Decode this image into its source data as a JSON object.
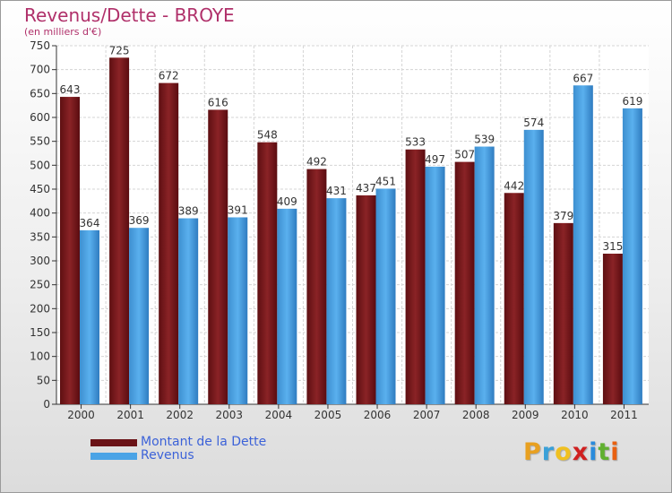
{
  "chart_data": {
    "type": "bar",
    "title": "Revenus/Dette - BROYE",
    "subtitle": "(en milliers d'€)",
    "categories": [
      "2000",
      "2001",
      "2002",
      "2003",
      "2004",
      "2005",
      "2006",
      "2007",
      "2008",
      "2009",
      "2010",
      "2011"
    ],
    "series": [
      {
        "name": "Montant de la Dette",
        "color": "#7a1a1c",
        "values": [
          643,
          725,
          672,
          616,
          548,
          492,
          437,
          533,
          507,
          442,
          379,
          315
        ]
      },
      {
        "name": "Revenus",
        "color": "#4aa3e6",
        "values": [
          364,
          369,
          389,
          391,
          409,
          431,
          451,
          497,
          539,
          574,
          667,
          619
        ]
      }
    ],
    "ylim": [
      0,
      750
    ],
    "yticks": [
      0,
      50,
      100,
      150,
      200,
      250,
      300,
      350,
      400,
      450,
      500,
      550,
      600,
      650,
      700,
      750
    ],
    "grid": true,
    "legend": "bottom-left"
  },
  "logo": {
    "letters": [
      "P",
      "r",
      "o",
      "x",
      "i",
      "t",
      "i"
    ],
    "colors": [
      "#e8a020",
      "#3aa0d8",
      "#f0c020",
      "#d02020",
      "#2a8adc",
      "#60b030",
      "#e86010"
    ]
  }
}
